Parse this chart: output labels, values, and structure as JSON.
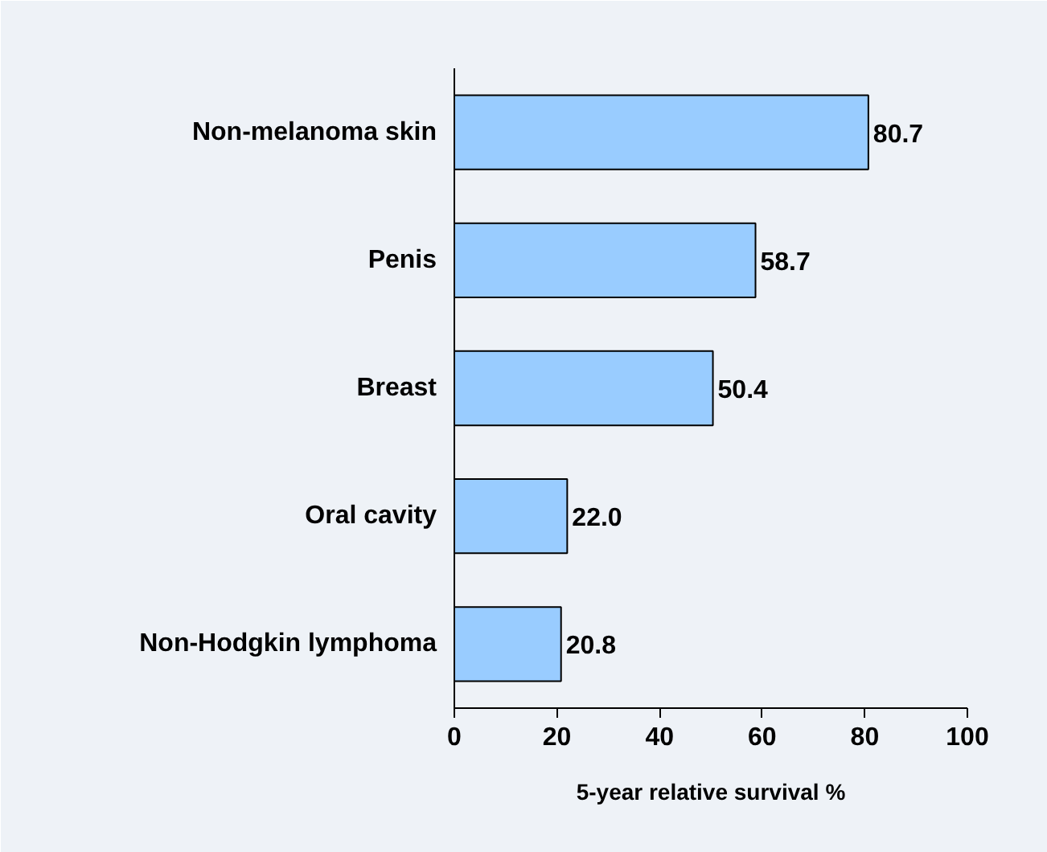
{
  "chart_data": {
    "type": "bar",
    "orientation": "horizontal",
    "xlabel": "5-year relative survival %",
    "categories": [
      "Non-melanoma skin",
      "Penis",
      "Breast",
      "Oral cavity",
      "Non-Hodgkin lymphoma"
    ],
    "values": [
      80.7,
      58.7,
      50.4,
      22.0,
      20.8
    ],
    "value_labels": [
      "80.7",
      "58.7",
      "50.4",
      "22.0",
      "20.8"
    ],
    "color": "#99ccff",
    "xlim": [
      0,
      100
    ],
    "xticks": [
      0,
      20,
      40,
      60,
      80,
      100
    ],
    "grid": false
  }
}
